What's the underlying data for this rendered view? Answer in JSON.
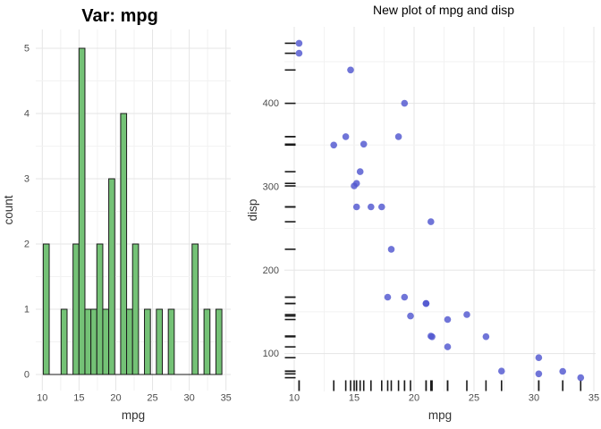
{
  "page": {
    "background": "#FFFFFF"
  },
  "style": {
    "grid_major": "#E5E5E5",
    "grid_minor": "#F2F2F2",
    "tick_label_color": "#4D4D4D",
    "axis_title_color": "#333333",
    "title_color": "#000000",
    "bar_fill": "#74C276",
    "bar_stroke": "#1A1A1A",
    "point_color": "#5157CF",
    "point_opacity": 0.82,
    "rug_color": "#1A1A1A",
    "background": "#FFFFFF"
  },
  "chart_data": [
    {
      "type": "bar",
      "subtype": "histogram",
      "title": "Var: mpg",
      "xlabel": "mpg",
      "ylabel": "count",
      "bin_start": 10.129,
      "bin_width": 0.8103,
      "counts": [
        2,
        0,
        0,
        1,
        0,
        2,
        5,
        1,
        1,
        2,
        1,
        3,
        0,
        4,
        1,
        2,
        0,
        1,
        0,
        1,
        0,
        1,
        0,
        0,
        0,
        2,
        0,
        1,
        0,
        1
      ],
      "total_observations": 32,
      "x_ticks": [
        10,
        15,
        20,
        25,
        30,
        35
      ],
      "y_ticks": [
        0,
        1,
        2,
        3,
        4,
        5
      ],
      "xlim": [
        9.2,
        35.6
      ],
      "ylim": [
        0,
        5.3
      ],
      "grid": true,
      "legend": "none"
    },
    {
      "type": "scatter",
      "title": "New plot of mpg and disp",
      "xlabel": "mpg",
      "ylabel": "disp",
      "points": [
        [
          21.0,
          160.0
        ],
        [
          21.0,
          160.0
        ],
        [
          22.8,
          108.0
        ],
        [
          21.4,
          258.0
        ],
        [
          18.7,
          360.0
        ],
        [
          18.1,
          225.0
        ],
        [
          14.3,
          360.0
        ],
        [
          24.4,
          146.7
        ],
        [
          22.8,
          140.8
        ],
        [
          19.2,
          167.6
        ],
        [
          17.8,
          167.6
        ],
        [
          16.4,
          275.8
        ],
        [
          17.3,
          275.8
        ],
        [
          15.2,
          275.8
        ],
        [
          10.4,
          472.0
        ],
        [
          10.4,
          460.0
        ],
        [
          14.7,
          440.0
        ],
        [
          32.4,
          78.7
        ],
        [
          30.4,
          75.7
        ],
        [
          33.9,
          71.1
        ],
        [
          21.5,
          120.1
        ],
        [
          15.5,
          318.0
        ],
        [
          15.2,
          304.0
        ],
        [
          13.3,
          350.0
        ],
        [
          19.2,
          400.0
        ],
        [
          27.3,
          79.0
        ],
        [
          26.0,
          120.3
        ],
        [
          30.4,
          95.1
        ],
        [
          15.8,
          351.0
        ],
        [
          19.7,
          145.0
        ],
        [
          15.0,
          301.0
        ],
        [
          21.4,
          121.0
        ]
      ],
      "x_ticks": [
        10,
        15,
        20,
        25,
        30,
        35
      ],
      "y_ticks": [
        100,
        200,
        300,
        400
      ],
      "rug": "both axes",
      "xlim": [
        9.2,
        35.1
      ],
      "ylim": [
        51,
        492
      ],
      "grid": true,
      "legend": "none"
    }
  ]
}
